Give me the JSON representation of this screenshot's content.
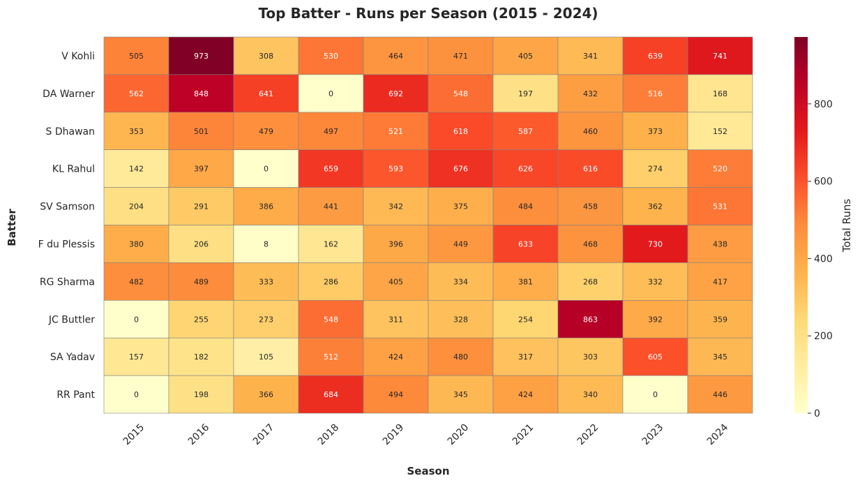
{
  "chart_data": {
    "type": "heatmap",
    "title": "Top Batter - Runs per Season (2015 - 2024)",
    "xlabel": "Season",
    "ylabel": "Batter",
    "x": [
      "2015",
      "2016",
      "2017",
      "2018",
      "2019",
      "2020",
      "2021",
      "2022",
      "2023",
      "2024"
    ],
    "y": [
      "V Kohli",
      "DA Warner",
      "S Dhawan",
      "KL Rahul",
      "SV Samson",
      "F du Plessis",
      "RG Sharma",
      "JC Buttler",
      "SA Yadav",
      "RR Pant"
    ],
    "values": [
      [
        505,
        973,
        308,
        530,
        464,
        471,
        405,
        341,
        639,
        741
      ],
      [
        562,
        848,
        641,
        0,
        692,
        548,
        197,
        432,
        516,
        168
      ],
      [
        353,
        501,
        479,
        497,
        521,
        618,
        587,
        460,
        373,
        152
      ],
      [
        142,
        397,
        0,
        659,
        593,
        676,
        626,
        616,
        274,
        520
      ],
      [
        204,
        291,
        386,
        441,
        342,
        375,
        484,
        458,
        362,
        531
      ],
      [
        380,
        206,
        8,
        162,
        396,
        449,
        633,
        468,
        730,
        438
      ],
      [
        482,
        489,
        333,
        286,
        405,
        334,
        381,
        268,
        332,
        417
      ],
      [
        0,
        255,
        273,
        548,
        311,
        328,
        254,
        863,
        392,
        359
      ],
      [
        157,
        182,
        105,
        512,
        424,
        480,
        317,
        303,
        605,
        345
      ],
      [
        0,
        198,
        366,
        684,
        494,
        345,
        424,
        340,
        0,
        446
      ]
    ],
    "colormap": "YlOrRd",
    "vmin": 0,
    "vmax": 973,
    "colorbar": {
      "label": "Total Runs",
      "ticks": [
        0,
        200,
        400,
        600,
        800
      ]
    },
    "grid": false,
    "annotations": true
  }
}
